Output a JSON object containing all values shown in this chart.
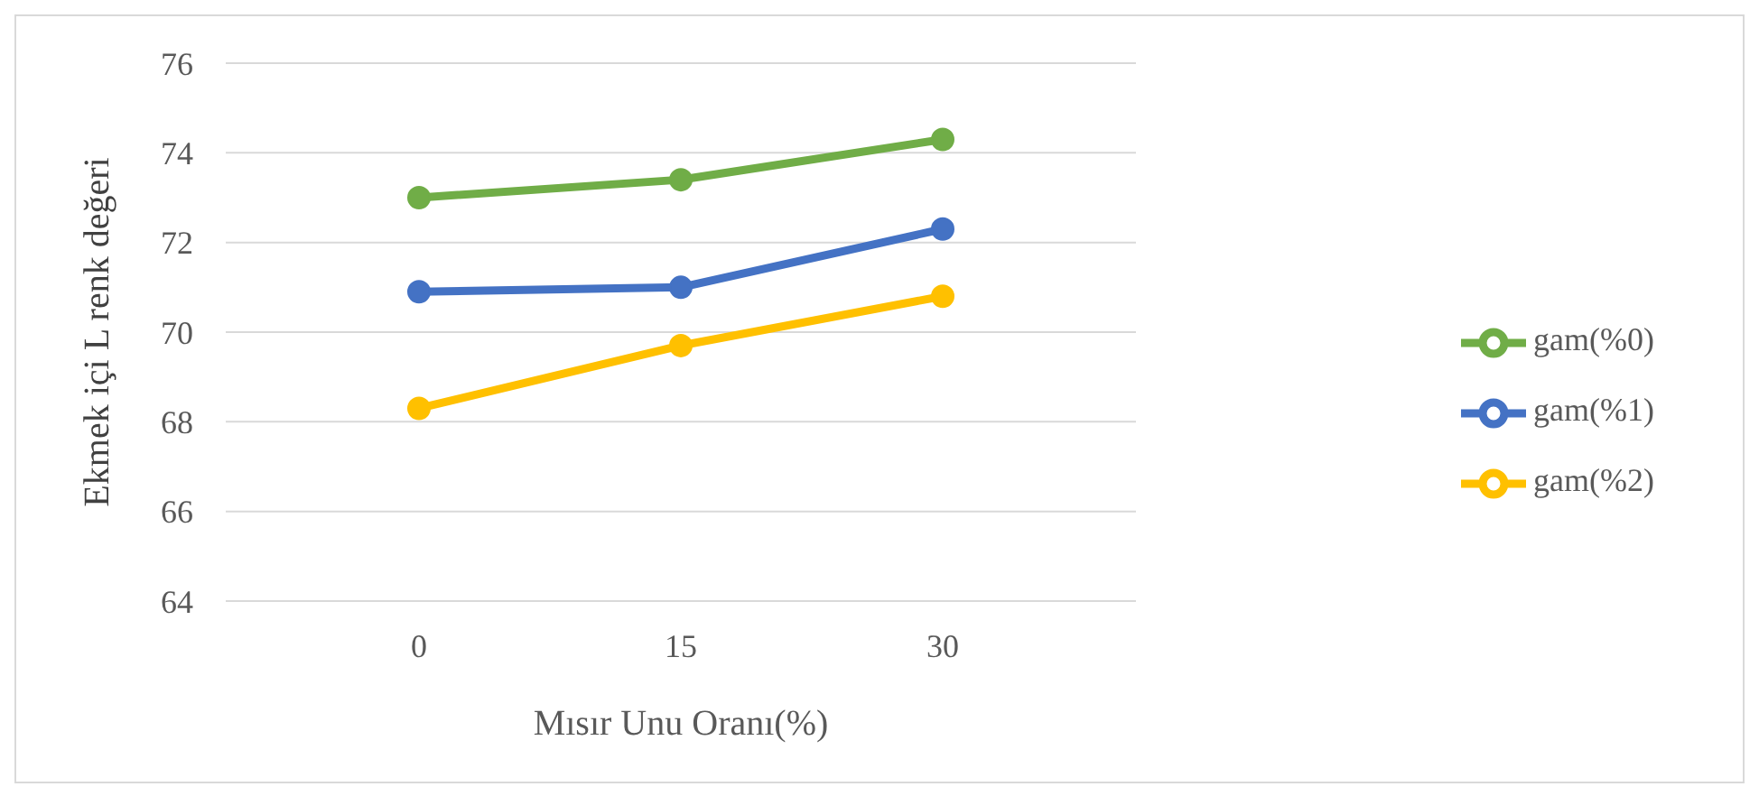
{
  "chart_data": {
    "type": "line",
    "xlabel": "Mısır Unu Oranı(%)",
    "ylabel": "Ekmek içi L renk değeri",
    "categories": [
      "0",
      "15",
      "30"
    ],
    "series": [
      {
        "name": "gam(%0)",
        "color": "#70ad47",
        "values": [
          73.0,
          73.4,
          74.3
        ]
      },
      {
        "name": "gam(%1)",
        "color": "#4472c4",
        "values": [
          70.9,
          71.0,
          72.3
        ]
      },
      {
        "name": "gam(%2)",
        "color": "#ffc000",
        "values": [
          68.3,
          69.7,
          70.8
        ]
      }
    ],
    "ylim": [
      64,
      76
    ],
    "yticks": [
      64,
      66,
      68,
      70,
      72,
      74,
      76
    ],
    "grid": "y",
    "legend": "right",
    "marker": "circle",
    "line_style": "solid"
  }
}
